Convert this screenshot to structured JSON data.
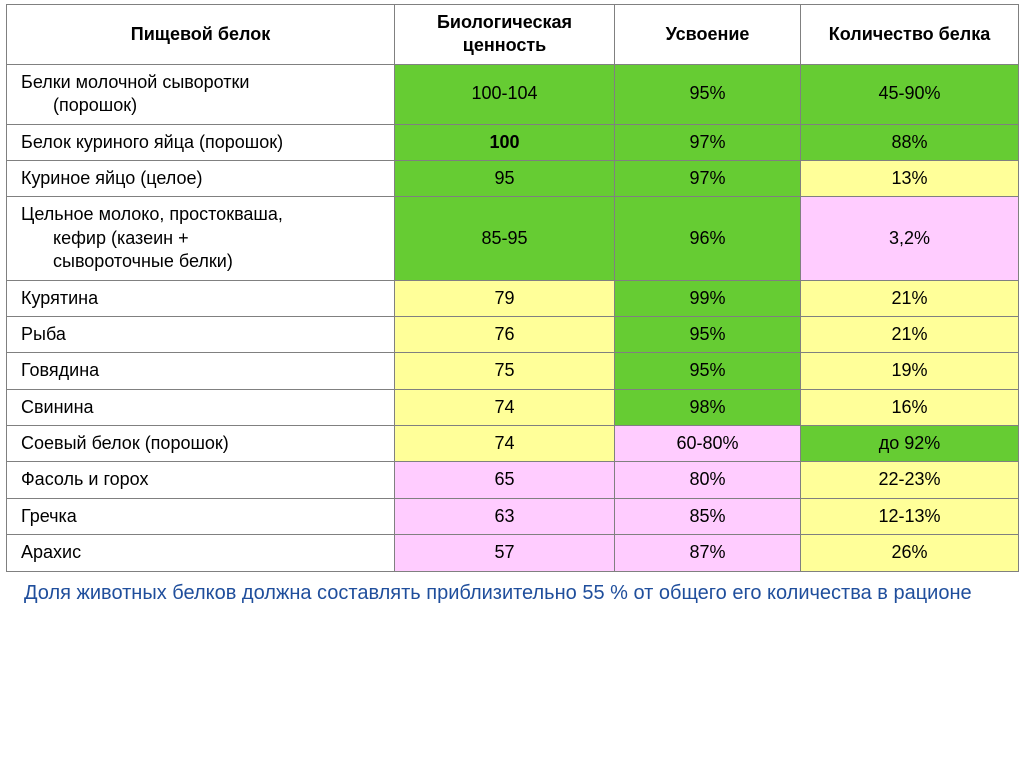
{
  "colors": {
    "green": "#66cc33",
    "yellow": "#ffff99",
    "pink": "#ffccff",
    "white": "#ffffff",
    "border": "#808080",
    "note": "#1f4e9c"
  },
  "headers": {
    "c1": "Пищевой белок",
    "c2": "Биологическая ценность",
    "c3": "Усвоение",
    "c4": "Количество белка"
  },
  "rows": [
    {
      "label_lines": [
        "Белки молочной сыворотки",
        "(порошок)"
      ],
      "bio": "100-104",
      "bio_c": "green",
      "abs": "95%",
      "abs_c": "green",
      "amt": "45-90%",
      "amt_c": "green",
      "bio_bold": false
    },
    {
      "label_lines": [
        "Белок куриного яйца (порошок)"
      ],
      "bio": "100",
      "bio_c": "green",
      "abs": "97%",
      "abs_c": "green",
      "amt": "88%",
      "amt_c": "green",
      "bio_bold": true
    },
    {
      "label_lines": [
        "Куриное яйцо (целое)"
      ],
      "bio": "95",
      "bio_c": "green",
      "abs": "97%",
      "abs_c": "green",
      "amt": "13%",
      "amt_c": "yellow",
      "bio_bold": false
    },
    {
      "label_lines": [
        "Цельное молоко, простокваша,",
        "кефир (казеин +",
        "сывороточные белки)"
      ],
      "bio": "85-95",
      "bio_c": "green",
      "abs": "96%",
      "abs_c": "green",
      "amt": "3,2%",
      "amt_c": "pink",
      "bio_bold": false
    },
    {
      "label_lines": [
        "Курятина"
      ],
      "bio": "79",
      "bio_c": "yellow",
      "abs": "99%",
      "abs_c": "green",
      "amt": "21%",
      "amt_c": "yellow",
      "bio_bold": false
    },
    {
      "label_lines": [
        "Рыба"
      ],
      "bio": "76",
      "bio_c": "yellow",
      "abs": "95%",
      "abs_c": "green",
      "amt": "21%",
      "amt_c": "yellow",
      "bio_bold": false
    },
    {
      "label_lines": [
        "Говядина"
      ],
      "bio": "75",
      "bio_c": "yellow",
      "abs": "95%",
      "abs_c": "green",
      "amt": "19%",
      "amt_c": "yellow",
      "bio_bold": false
    },
    {
      "label_lines": [
        "Свинина"
      ],
      "bio": "74",
      "bio_c": "yellow",
      "abs": "98%",
      "abs_c": "green",
      "amt": "16%",
      "amt_c": "yellow",
      "bio_bold": false
    },
    {
      "label_lines": [
        "Соевый белок (порошок)"
      ],
      "bio": "74",
      "bio_c": "yellow",
      "abs": "60-80%",
      "abs_c": "pink",
      "amt": "до 92%",
      "amt_c": "green",
      "bio_bold": false
    },
    {
      "label_lines": [
        "Фасоль и горох"
      ],
      "bio": "65",
      "bio_c": "pink",
      "abs": "80%",
      "abs_c": "pink",
      "amt": "22-23%",
      "amt_c": "yellow",
      "bio_bold": false
    },
    {
      "label_lines": [
        "Гречка"
      ],
      "bio": "63",
      "bio_c": "pink",
      "abs": "85%",
      "abs_c": "pink",
      "amt": "12-13%",
      "amt_c": "yellow",
      "bio_bold": false
    },
    {
      "label_lines": [
        "Арахис"
      ],
      "bio": "57",
      "bio_c": "pink",
      "abs": "87%",
      "abs_c": "pink",
      "amt": "26%",
      "amt_c": "yellow",
      "bio_bold": false
    }
  ],
  "footnote": "Доля животных белков должна составлять приблизительно 55 % от общего его количества в рационе"
}
